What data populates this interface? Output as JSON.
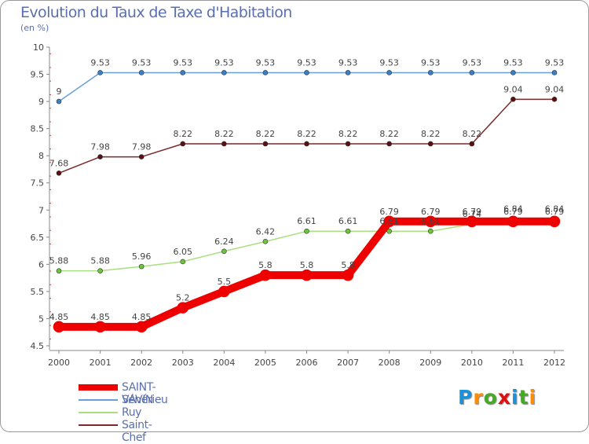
{
  "title": "Evolution du Taux de Taxe d'Habitation",
  "subtitle": "(en %)",
  "logo_text": "Proxiti",
  "logo_letters": [
    {
      "ch": "P",
      "color": "#1e90d8"
    },
    {
      "ch": "r",
      "color": "#ff8c00"
    },
    {
      "ch": "o",
      "color": "#44aa22"
    },
    {
      "ch": "x",
      "color": "#e01010"
    },
    {
      "ch": "i",
      "color": "#1e90d8"
    },
    {
      "ch": "t",
      "color": "#44aa22"
    },
    {
      "ch": "i",
      "color": "#ff8c00"
    }
  ],
  "chart_data": {
    "type": "line",
    "title": "Evolution du Taux de Taxe d'Habitation",
    "ylabel": "(en %)",
    "xlabel": "",
    "categories": [
      "2000",
      "2001",
      "2002",
      "2003",
      "2004",
      "2005",
      "2006",
      "2007",
      "2008",
      "2009",
      "2010",
      "2011",
      "2012"
    ],
    "ylim": [
      4.5,
      10
    ],
    "yticks": [
      4.5,
      5,
      5.5,
      6,
      6.5,
      7,
      7.5,
      8,
      8.5,
      9,
      9.5,
      10
    ],
    "ytick_labels": [
      "4.5",
      "5",
      "5.5",
      "6",
      "6.5",
      "7",
      "7.5",
      "8",
      "8.5",
      "9",
      "9.5",
      "10"
    ],
    "legend_position": "bottom-left",
    "series": [
      {
        "name": "Vénérieu",
        "color": "#6a9ed6",
        "marker": "#3d7fc4",
        "width": 1.5,
        "values": [
          9,
          9.53,
          9.53,
          9.53,
          9.53,
          9.53,
          9.53,
          9.53,
          9.53,
          9.53,
          9.53,
          9.53,
          9.53
        ],
        "labels": [
          "9",
          "9.53",
          "9.53",
          "9.53",
          "9.53",
          "9.53",
          "9.53",
          "9.53",
          "9.53",
          "9.53",
          "9.53",
          "9.53",
          "9.53"
        ]
      },
      {
        "name": "Saint-Chef",
        "color": "#7a2a2a",
        "marker": "#5a1010",
        "width": 1.5,
        "values": [
          7.68,
          7.98,
          7.98,
          8.22,
          8.22,
          8.22,
          8.22,
          8.22,
          8.22,
          8.22,
          8.22,
          9.04,
          9.04
        ],
        "labels": [
          "7.68",
          "7.98",
          "7.98",
          "8.22",
          "8.22",
          "8.22",
          "8.22",
          "8.22",
          "8.22",
          "8.22",
          "8.22",
          "9.04",
          "9.04"
        ]
      },
      {
        "name": "Ruy",
        "color": "#a8e080",
        "marker": "#6ec43a",
        "width": 1.5,
        "values": [
          5.88,
          5.88,
          5.96,
          6.05,
          6.24,
          6.42,
          6.61,
          6.61,
          6.61,
          6.61,
          6.74,
          6.84,
          6.84
        ],
        "labels": [
          "5.88",
          "5.88",
          "5.96",
          "6.05",
          "6.24",
          "6.42",
          "6.61",
          "6.61",
          "6.61",
          "6.61",
          "6.74",
          "6.84",
          "6.84"
        ]
      },
      {
        "name": "SAINT-SAVIN",
        "color": "#ee0000",
        "marker": "#ee0000",
        "width": 10,
        "values": [
          4.85,
          4.85,
          4.85,
          5.2,
          5.5,
          5.8,
          5.8,
          5.8,
          6.79,
          6.79,
          6.79,
          6.79,
          6.79
        ],
        "labels": [
          "4.85",
          "4.85",
          "4.85",
          "5.2",
          "5.5",
          "5.8",
          "5.8",
          "5.8",
          "6.79",
          "6.79",
          "6.79",
          "6.79",
          "6.79"
        ]
      }
    ],
    "legend_order": [
      "SAINT-SAVIN",
      "Vénérieu",
      "Ruy",
      "Saint-Chef"
    ]
  }
}
